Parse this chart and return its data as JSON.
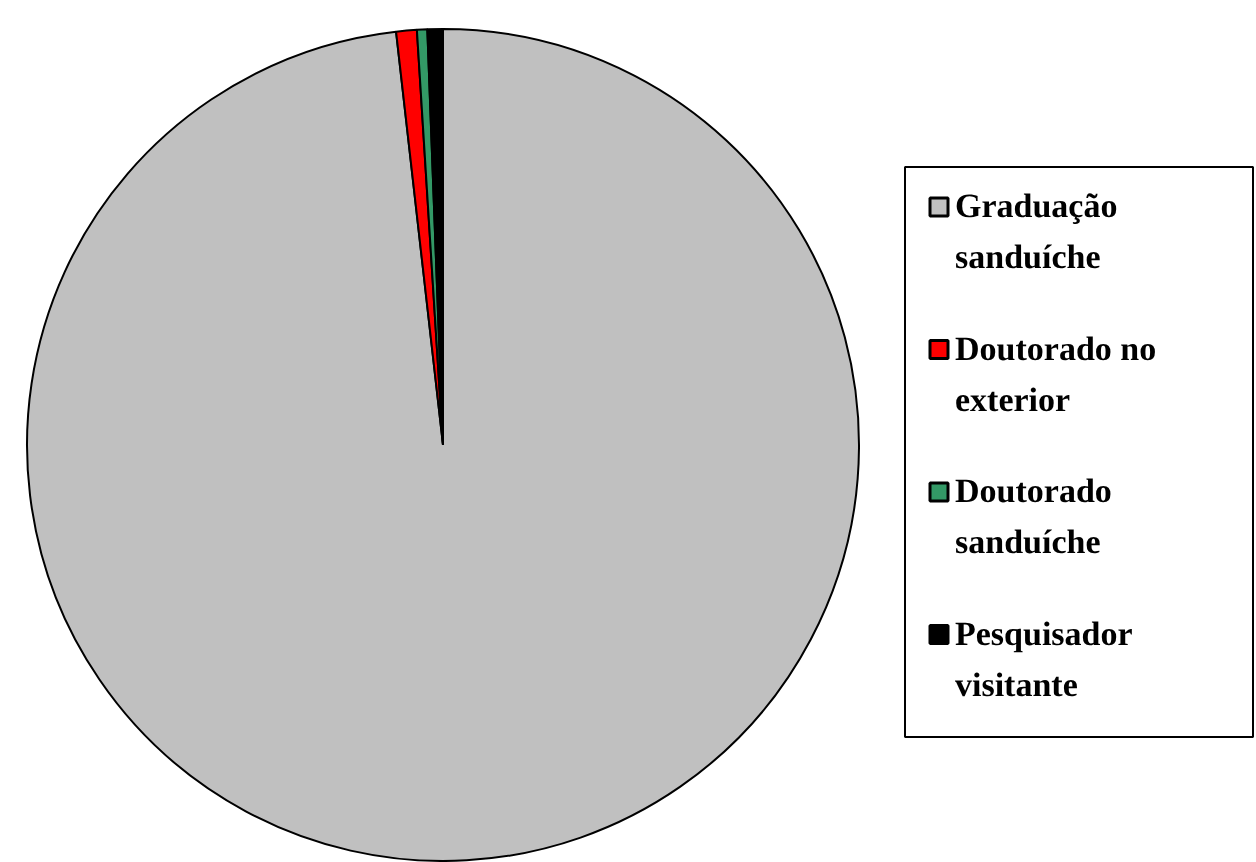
{
  "chart_data": {
    "type": "pie",
    "categories": [
      "Graduação sanduíche",
      "Doutorado no exterior",
      "Doutorado sanduíche",
      "Pesquisador visitante"
    ],
    "values": [
      98.2,
      0.8,
      0.4,
      0.6
    ],
    "colors": [
      "#c0c0c0",
      "#ff0000",
      "#339966",
      "#000000"
    ],
    "legend": "right"
  }
}
